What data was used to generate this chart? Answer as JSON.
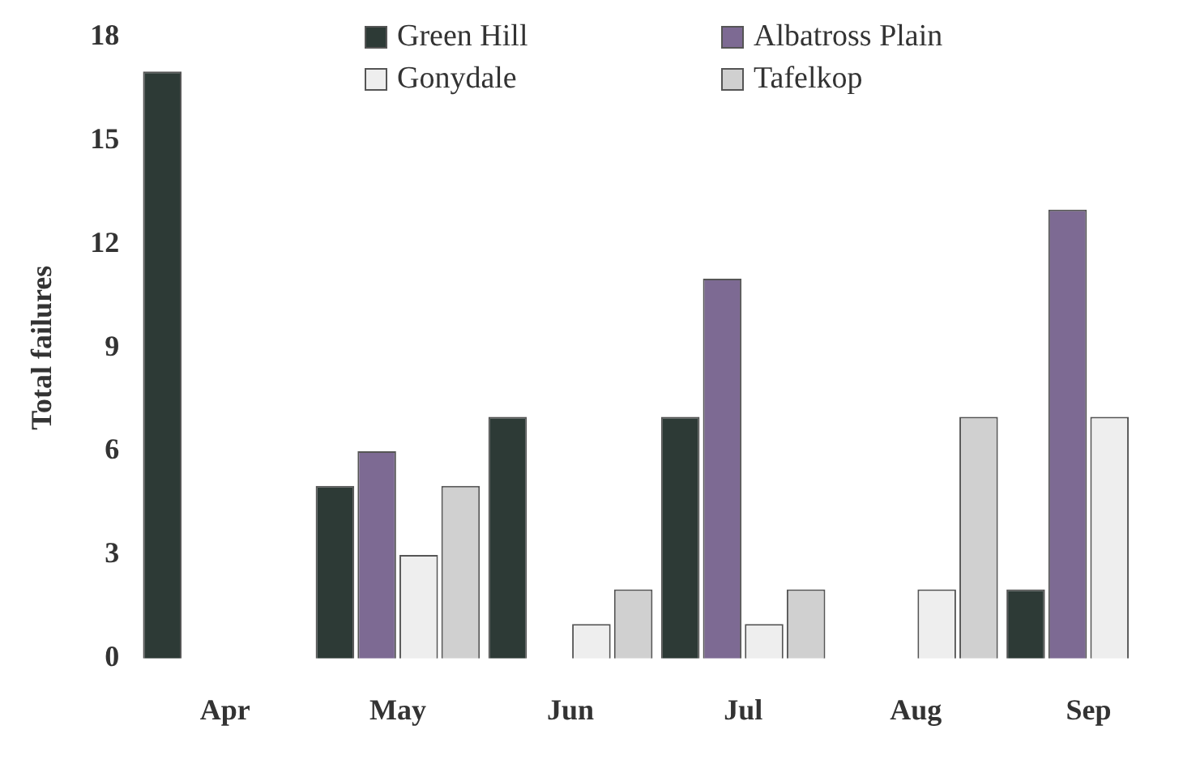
{
  "chart_data": {
    "type": "bar",
    "ylabel": "Total failures",
    "categories": [
      "Apr",
      "May",
      "Jun",
      "Jul",
      "Aug",
      "Sep"
    ],
    "series": [
      {
        "name": "Green Hill",
        "color": "#2d3a36",
        "values": [
          17,
          5,
          7,
          7,
          0,
          2
        ]
      },
      {
        "name": "Albatross Plain",
        "color": "#7d6a93",
        "values": [
          0,
          6,
          0,
          11,
          0,
          13
        ]
      },
      {
        "name": "Gonydale",
        "color": "#eeeeee",
        "values": [
          0,
          3,
          1,
          1,
          2,
          7
        ]
      },
      {
        "name": "Tafelkop",
        "color": "#d0d0d0",
        "values": [
          0,
          5,
          2,
          2,
          7,
          0
        ]
      }
    ],
    "ylim": [
      0,
      18
    ],
    "yticks": [
      0,
      3,
      6,
      9,
      12,
      15,
      18
    ],
    "grid": false,
    "legend": "top"
  }
}
